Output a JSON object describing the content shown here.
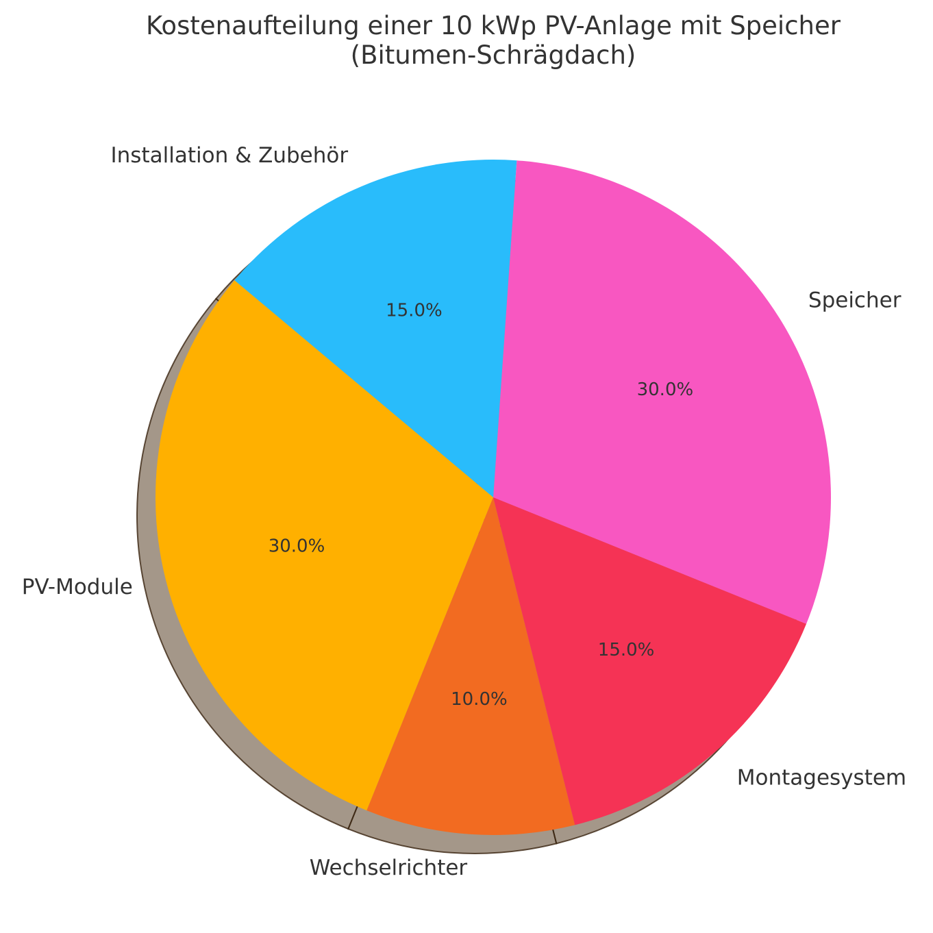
{
  "chart_data": {
    "type": "pie",
    "title": "Kostenaufteilung einer 10 kWp PV-Anlage mit Speicher",
    "subtitle": "(Bitumen-Schrägdach)",
    "start_angle_deg": 140,
    "direction": "counterclockwise",
    "shadow": true,
    "slices": [
      {
        "label": "PV-Module",
        "value": 30,
        "pct_label": "30.0%",
        "color": "#FFB000"
      },
      {
        "label": "Wechselrichter",
        "value": 10,
        "pct_label": "10.0%",
        "color": "#F26B21"
      },
      {
        "label": "Montagesystem",
        "value": 15,
        "pct_label": "15.0%",
        "color": "#F53355"
      },
      {
        "label": "Speicher",
        "value": 30,
        "pct_label": "30.0%",
        "color": "#F857C1"
      },
      {
        "label": "Installation & Zubehör",
        "value": 15,
        "pct_label": "15.0%",
        "color": "#29BCFB"
      }
    ]
  }
}
